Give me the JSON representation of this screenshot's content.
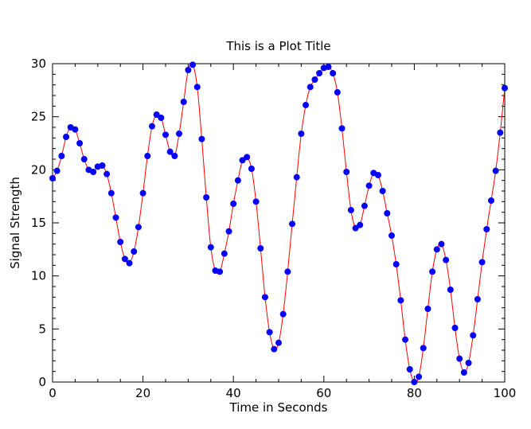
{
  "chart_data": {
    "type": "line",
    "title": "This is a Plot Title",
    "xlabel": "Time in Seconds",
    "ylabel": "Signal Strength",
    "xlim": [
      0,
      100
    ],
    "ylim": [
      0,
      30
    ],
    "xticks": [
      0,
      20,
      40,
      60,
      80,
      100
    ],
    "yticks": [
      0,
      5,
      10,
      15,
      20,
      25,
      30
    ],
    "grid": false,
    "line_color": "#ff0000",
    "marker_color": "#0000ff",
    "marker": "filled-circle",
    "series": [
      {
        "x": [
          0,
          1,
          2,
          3,
          4,
          5,
          6,
          7,
          8,
          9,
          10,
          11,
          12,
          13,
          14,
          15,
          16,
          17,
          18,
          19,
          20,
          21,
          22,
          23,
          24,
          25,
          26,
          27,
          28,
          29,
          30,
          31,
          32,
          33,
          34,
          35,
          36,
          37,
          38,
          39,
          40,
          41,
          42,
          43,
          44,
          45,
          46,
          47,
          48,
          49,
          50,
          51,
          52,
          53,
          54,
          55,
          56,
          57,
          58,
          59,
          60,
          61,
          62,
          63,
          64,
          65,
          66,
          67,
          68,
          69,
          70,
          71,
          72,
          73,
          74,
          75,
          76,
          77,
          78,
          79,
          80,
          81,
          82,
          83,
          84,
          85,
          86,
          87,
          88,
          89,
          90,
          91,
          92,
          93,
          94,
          95,
          96,
          97,
          98,
          99,
          100
        ],
        "values": [
          19.2,
          19.9,
          21.3,
          23.1,
          24.0,
          23.8,
          22.5,
          21.0,
          20.0,
          19.8,
          20.3,
          20.4,
          19.6,
          17.8,
          15.5,
          13.2,
          11.6,
          11.2,
          12.3,
          14.6,
          17.8,
          21.3,
          24.1,
          25.2,
          24.9,
          23.3,
          21.7,
          21.3,
          23.4,
          26.4,
          29.4,
          29.9,
          27.8,
          22.9,
          17.4,
          12.7,
          10.5,
          10.4,
          12.1,
          14.2,
          16.8,
          19.0,
          20.9,
          21.2,
          20.1,
          17.0,
          12.6,
          8.0,
          4.7,
          3.1,
          3.7,
          6.4,
          10.4,
          14.9,
          19.3,
          23.4,
          26.1,
          27.8,
          28.5,
          29.1,
          29.6,
          29.7,
          29.1,
          27.3,
          23.9,
          19.8,
          16.2,
          14.5,
          14.8,
          16.6,
          18.5,
          19.7,
          19.5,
          18.0,
          15.9,
          13.8,
          11.1,
          7.7,
          4.0,
          1.2,
          0.0,
          0.5,
          3.2,
          6.9,
          10.4,
          12.5,
          13.0,
          11.5,
          8.7,
          5.1,
          2.2,
          0.9,
          1.8,
          4.4,
          7.8,
          11.3,
          14.4,
          17.1,
          19.9,
          23.5,
          27.7
        ]
      }
    ]
  }
}
